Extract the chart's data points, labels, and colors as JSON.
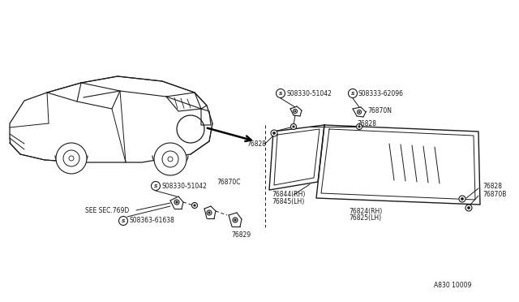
{
  "bg_color": "#ffffff",
  "line_color": "#1a1a1a",
  "fig_width": 6.4,
  "fig_height": 3.72,
  "dpi": 100,
  "ref_number": "A830 10009",
  "labels": {
    "s08330_51042_top": "S08330-51042",
    "s08333_62096": "S08333-62096",
    "76870N": "76870N",
    "76828_top": "76828",
    "76828_left": "76828",
    "76828_right": "76828",
    "76844": "76844(RH)",
    "76845": "76845(LH)",
    "76824": "76824(RH)",
    "76825": "76825(LH)",
    "76870B": "76870B",
    "s08330_51042_bot": "S08330-51042",
    "76870C": "76870C",
    "76829": "76829",
    "see_sec": "SEE SEC.769D",
    "s08363": "S08363-61638"
  }
}
